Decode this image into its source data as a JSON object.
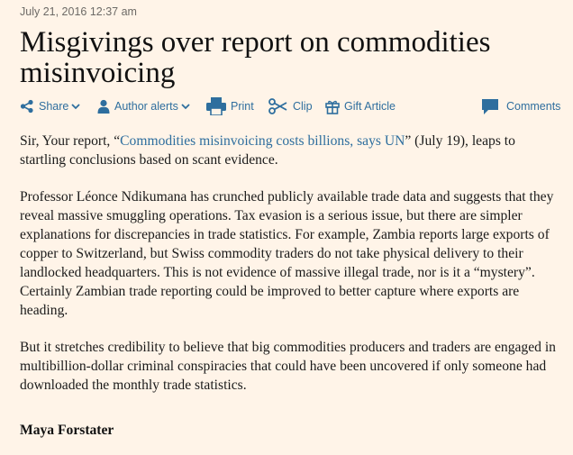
{
  "article": {
    "timestamp": "July 21, 2016 12:37 am",
    "headline": "Misgivings over report on commodities misinvoicing",
    "toolbar": {
      "share_label": "Share",
      "author_alerts_label": "Author alerts",
      "print_label": "Print",
      "clip_label": "Clip",
      "gift_label": "Gift Article",
      "comments_label": "Comments",
      "link_color": "#2e6e9e"
    },
    "paragraph1": {
      "before": "Sir, Your report, “",
      "link": "Commodities misinvoicing costs billions, says UN",
      "after": "” (July 19), leaps to startling conclusions based on scant evidence."
    },
    "paragraph2": "Professor Léonce Ndikumana has crunched publicly available trade data and suggests that they reveal massive smuggling operations. Tax evasion is a serious issue, but there are simpler explanations for discrepancies in trade statistics. For example, Zambia reports large exports of copper to Switzerland, but Swiss commodity traders do not take physical delivery to their landlocked headquarters. This is not evidence of massive illegal trade, nor is it a “mystery”. Certainly Zambian trade reporting could be improved to better capture where exports are heading.",
    "paragraph3": "But it stretches credibility to believe that big commodities producers and traders are engaged in multibillion-dollar criminal conspiracies that could have been uncovered if only someone had downloaded the monthly trade statistics.",
    "author": "Maya Forstater",
    "background_color": "#fff4e8"
  }
}
